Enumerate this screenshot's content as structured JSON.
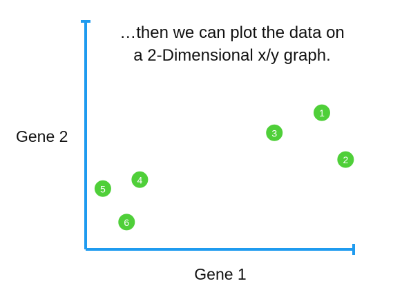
{
  "chart_data": {
    "type": "scatter",
    "title_lines": [
      "…then we can plot the data on",
      "a 2-Dimensional x/y graph."
    ],
    "xlabel": "Gene 1",
    "ylabel": "Gene 2",
    "xlim": [
      0,
      10
    ],
    "ylim": [
      0,
      10
    ],
    "grid": false,
    "legend": "none",
    "show_ticks": false,
    "axis_color": "#1f9bef",
    "point_color": "#4fcf39",
    "points": [
      {
        "label": "1",
        "x": 8.9,
        "y": 6.0
      },
      {
        "label": "2",
        "x": 9.8,
        "y": 3.9
      },
      {
        "label": "3",
        "x": 7.1,
        "y": 5.1
      },
      {
        "label": "4",
        "x": 2.0,
        "y": 3.0
      },
      {
        "label": "5",
        "x": 0.6,
        "y": 2.6
      },
      {
        "label": "6",
        "x": 1.5,
        "y": 1.1
      }
    ]
  }
}
